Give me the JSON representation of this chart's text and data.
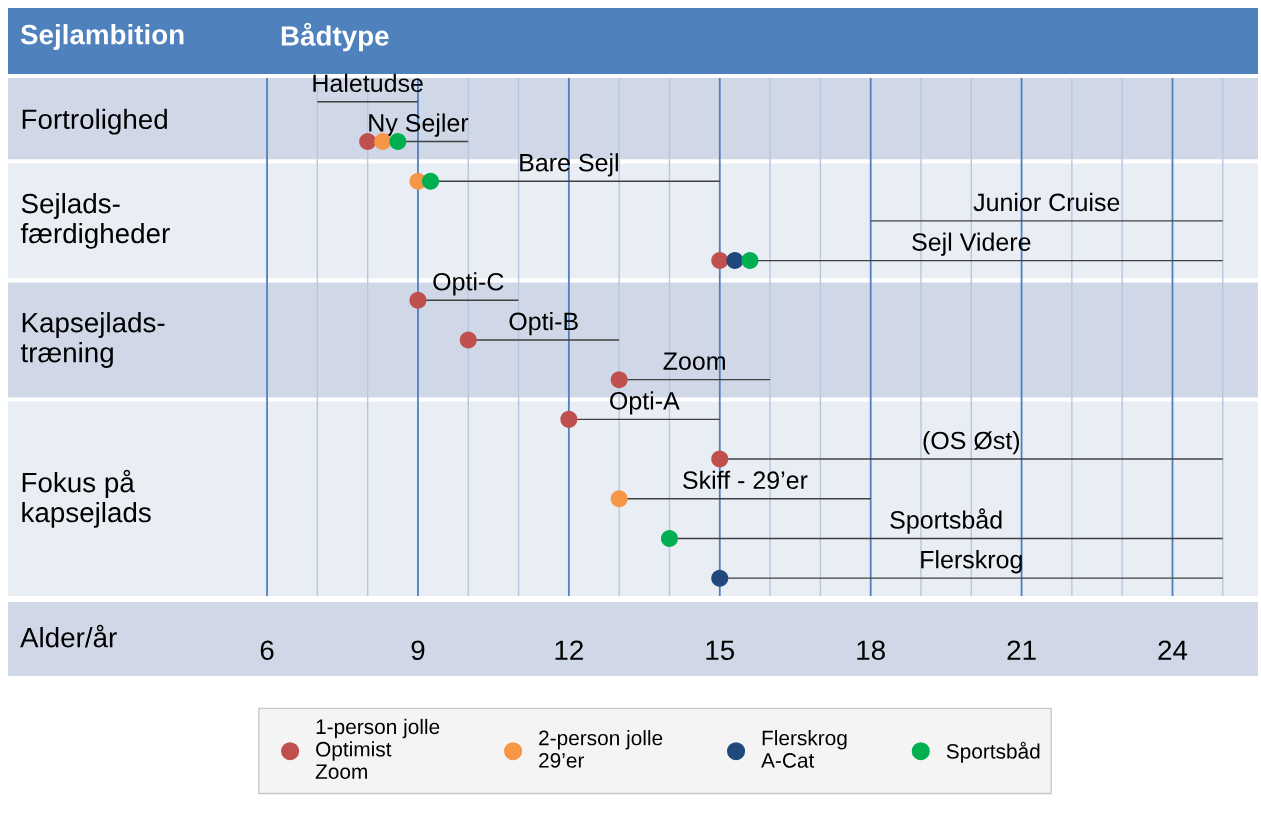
{
  "chart_data": {
    "type": "bar",
    "orientation": "horizontal",
    "title": "Bådtype",
    "ylabel": "Sejlambition",
    "xlabel": "Alder/år",
    "categories": [
      "Haletudse",
      "Ny Sejler",
      "Bare Sejl",
      "Junior Cruise",
      "Sejl Videre",
      "Opti-C",
      "Opti-B",
      "Zoom",
      "Opti-A",
      "(OS Øst)",
      "Skiff - 29’er",
      "Sportsbåd",
      "Flerskrog"
    ],
    "base": [
      7,
      8,
      9,
      18,
      15,
      9,
      10,
      13,
      12,
      15,
      13,
      14,
      15
    ],
    "values": [
      2,
      2,
      6,
      7,
      10,
      2,
      3,
      3,
      3,
      10,
      5,
      11,
      10
    ],
    "color": "#404040",
    "annotations": [
      "Fortrolighed",
      "Sejlads-\nfærdigheder",
      "Kapsejlads-\ntræning",
      "Fokus på\nkapsejlads"
    ],
    "series": [
      {
        "name": "1-person jolle\nOptimist\nZoom",
        "type": "scatter",
        "color": "#c0504d",
        "values": [
          null,
          8,
          null,
          null,
          15,
          9,
          10,
          13,
          12,
          15,
          null,
          null,
          null
        ]
      },
      {
        "name": "2-person jolle\n29’er",
        "type": "scatter",
        "color": "#f79646",
        "values": [
          null,
          8.3,
          9,
          null,
          null,
          null,
          null,
          null,
          null,
          null,
          13,
          null,
          null
        ]
      },
      {
        "name": "Flerskrog\nA-Cat",
        "type": "scatter",
        "color": "#1f497d",
        "values": [
          null,
          null,
          null,
          null,
          15.3,
          null,
          null,
          null,
          null,
          null,
          null,
          null,
          15
        ]
      },
      {
        "name": "Sportsbåd",
        "type": "scatter",
        "color": "#00b050",
        "values": [
          null,
          8.6,
          9.25,
          null,
          15.6,
          null,
          null,
          null,
          null,
          null,
          null,
          14,
          null
        ]
      }
    ],
    "xlim": [
      0.85,
      25.7
    ],
    "xticks": [
      6,
      {
        "value": 7,
        "label": null
      },
      {
        "value": 8,
        "label": null
      },
      9,
      {
        "value": 10,
        "label": null
      },
      {
        "value": 11,
        "label": null
      },
      12,
      {
        "value": 13,
        "label": null
      },
      {
        "value": 14,
        "label": null
      },
      15,
      {
        "value": 16,
        "label": null
      },
      {
        "value": 17,
        "label": null
      },
      18,
      {
        "value": 19,
        "label": null
      },
      {
        "value": 20,
        "label": null
      },
      21,
      {
        "value": 22,
        "label": null
      },
      {
        "value": 23,
        "label": null
      },
      24,
      {
        "value": 25,
        "label": null
      }
    ],
    "grid": "x",
    "marker": "circle",
    "legend": "bottom"
  }
}
